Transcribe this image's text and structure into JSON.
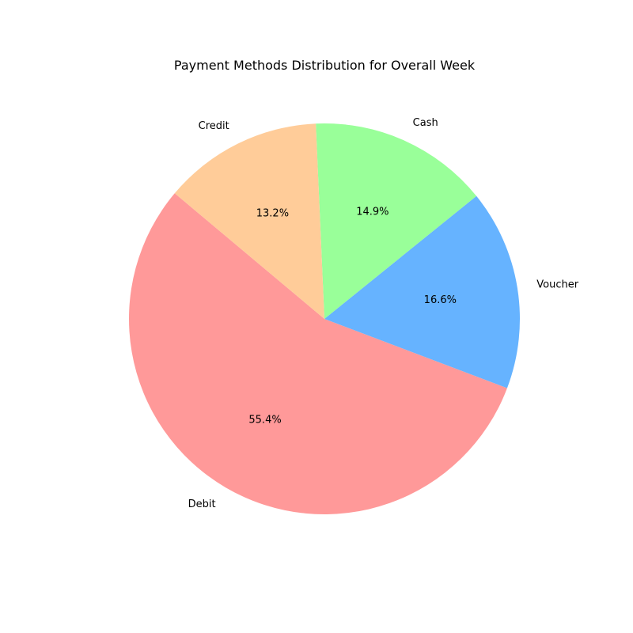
{
  "chart_data": {
    "type": "pie",
    "title": "Payment Methods Distribution for Overall Week",
    "categories": [
      "Debit",
      "Voucher",
      "Cash",
      "Credit"
    ],
    "values": [
      55.4,
      16.6,
      14.9,
      13.2
    ],
    "value_labels": [
      "55.4%",
      "16.6%",
      "14.9%",
      "13.2%"
    ],
    "colors": [
      "#ff9999",
      "#66b3ff",
      "#99ff99",
      "#ffcc99"
    ],
    "start_angle_deg": 140,
    "direction": "counterclockwise",
    "legend": "none"
  }
}
